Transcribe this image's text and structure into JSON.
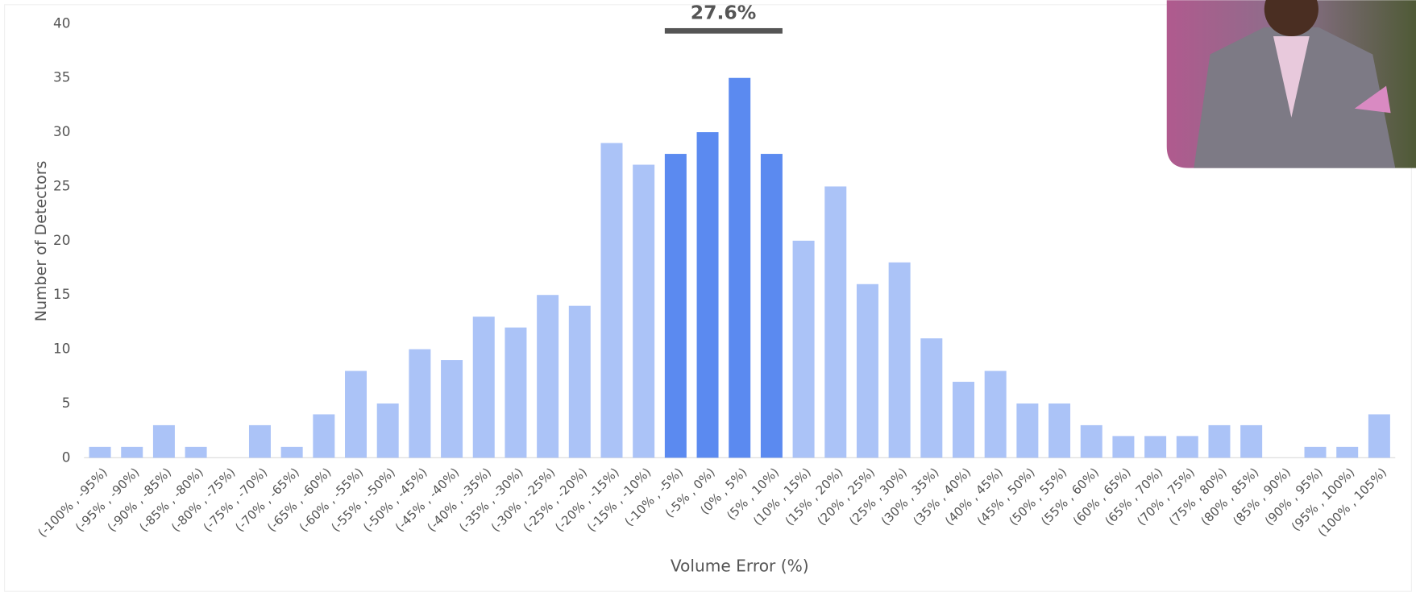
{
  "chart_data": {
    "type": "bar",
    "annotation": "27.6%",
    "x_label": "Volume Error (%)",
    "y_label": "Number of Detectors",
    "categories": [
      "(-100% , -95%)",
      "(-95% , -90%)",
      "(-90% , -85%)",
      "(-85% , -80%)",
      "(-80% , -75%)",
      "(-75% , -70%)",
      "(-70% , -65%)",
      "(-65% , -60%)",
      "(-60% , -55%)",
      "(-55% , -50%)",
      "(-50% , -45%)",
      "(-45% , -40%)",
      "(-40% , -35%)",
      "(-35% , -30%)",
      "(-30% , -25%)",
      "(-25% , -20%)",
      "(-20% , -15%)",
      "(-15% , -10%)",
      "(-10% , -5%)",
      "(-5% , 0%)",
      "(0% , 5%)",
      "(5% , 10%)",
      "(10% , 15%)",
      "(15% , 20%)",
      "(20% , 25%)",
      "(25% , 30%)",
      "(30% , 35%)",
      "(35% , 40%)",
      "(40% , 45%)",
      "(45% , 50%)",
      "(50% , 55%)",
      "(55% , 60%)",
      "(60% , 65%)",
      "(65% , 70%)",
      "(70% , 75%)",
      "(75% , 80%)",
      "(80% , 85%)",
      "(85% , 90%)",
      "(90% , 95%)",
      "(95% , 100%)",
      "(100% , 105%)"
    ],
    "values": [
      1,
      1,
      3,
      1,
      0,
      3,
      1,
      4,
      8,
      5,
      10,
      9,
      13,
      12,
      15,
      14,
      29,
      27,
      28,
      30,
      35,
      28,
      20,
      25,
      16,
      18,
      11,
      7,
      8,
      5,
      5,
      3,
      2,
      2,
      2,
      3,
      3,
      0,
      1,
      1,
      4
    ],
    "color": "#abc3f7",
    "highlight_color": "#5b8af0",
    "colors": [
      "#abc3f7",
      "#abc3f7",
      "#abc3f7",
      "#abc3f7",
      "#abc3f7",
      "#abc3f7",
      "#abc3f7",
      "#abc3f7",
      "#abc3f7",
      "#abc3f7",
      "#abc3f7",
      "#abc3f7",
      "#abc3f7",
      "#abc3f7",
      "#abc3f7",
      "#abc3f7",
      "#abc3f7",
      "#abc3f7",
      "#5b8af0",
      "#5b8af0",
      "#5b8af0",
      "#5b8af0",
      "#abc3f7",
      "#abc3f7",
      "#abc3f7",
      "#abc3f7",
      "#abc3f7",
      "#abc3f7",
      "#abc3f7",
      "#abc3f7",
      "#abc3f7",
      "#abc3f7",
      "#abc3f7",
      "#abc3f7",
      "#abc3f7",
      "#abc3f7",
      "#abc3f7",
      "#abc3f7",
      "#abc3f7",
      "#abc3f7",
      "#abc3f7"
    ],
    "ylim": [
      0,
      40
    ],
    "yticks": [
      0,
      5,
      10,
      15,
      20,
      25,
      30,
      35,
      40
    ],
    "grid": false
  }
}
